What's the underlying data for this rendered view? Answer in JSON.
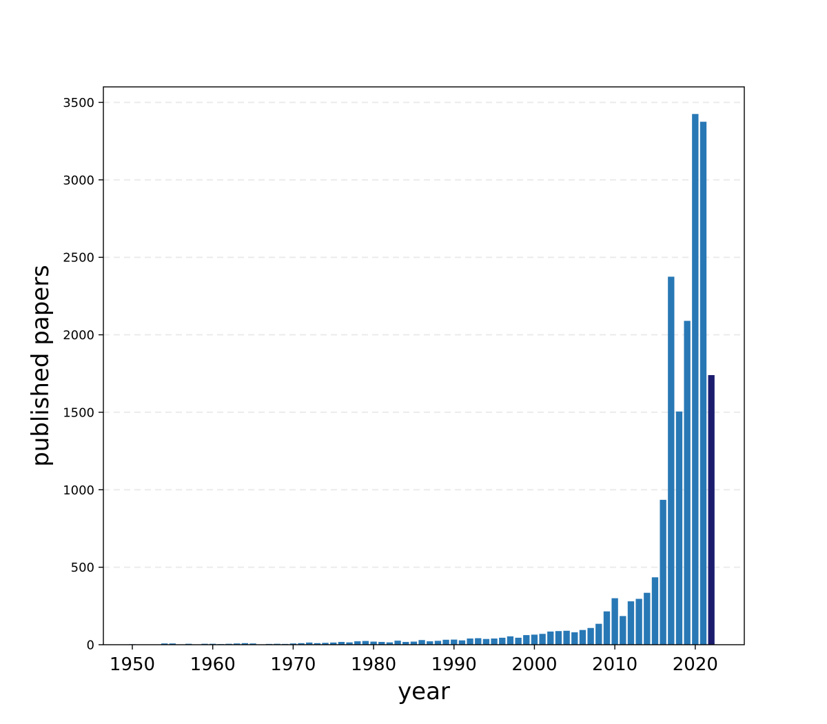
{
  "chart_data": {
    "type": "bar",
    "title": "",
    "xlabel": "year",
    "ylabel": "published papers",
    "xlim": [
      1946.4,
      2026.1
    ],
    "ylim": [
      0,
      3600
    ],
    "grid": "horizontal dashed",
    "colors": {
      "bar": "#2878b5",
      "highlight": "#1c1c6e",
      "grid": "#ebebeb"
    },
    "x_ticks": [
      1950,
      1960,
      1970,
      1980,
      1990,
      2000,
      2010,
      2020
    ],
    "y_ticks": [
      0,
      500,
      1000,
      1500,
      2000,
      2500,
      3000,
      3500
    ],
    "highlight_year": 2022,
    "x": [
      1950,
      1951,
      1952,
      1953,
      1954,
      1955,
      1956,
      1957,
      1958,
      1959,
      1960,
      1961,
      1962,
      1963,
      1964,
      1965,
      1966,
      1967,
      1968,
      1969,
      1970,
      1971,
      1972,
      1973,
      1974,
      1975,
      1976,
      1977,
      1978,
      1979,
      1980,
      1981,
      1982,
      1983,
      1984,
      1985,
      1986,
      1987,
      1988,
      1989,
      1990,
      1991,
      1992,
      1993,
      1994,
      1995,
      1996,
      1997,
      1998,
      1999,
      2000,
      2001,
      2002,
      2003,
      2004,
      2005,
      2006,
      2007,
      2008,
      2009,
      2010,
      2011,
      2012,
      2013,
      2014,
      2015,
      2016,
      2017,
      2018,
      2019,
      2020,
      2021,
      2022
    ],
    "values": [
      3,
      1,
      1,
      1,
      8,
      8,
      2,
      6,
      2,
      6,
      6,
      4,
      6,
      8,
      10,
      8,
      1,
      5,
      6,
      5,
      8,
      10,
      14,
      10,
      12,
      14,
      18,
      15,
      22,
      24,
      20,
      18,
      15,
      26,
      18,
      20,
      30,
      22,
      25,
      32,
      33,
      28,
      40,
      42,
      37,
      40,
      45,
      54,
      45,
      62,
      65,
      70,
      85,
      88,
      90,
      80,
      95,
      108,
      135,
      215,
      300,
      185,
      280,
      296,
      335,
      435,
      935,
      2375,
      1505,
      2090,
      3425,
      3375,
      1740
    ]
  }
}
